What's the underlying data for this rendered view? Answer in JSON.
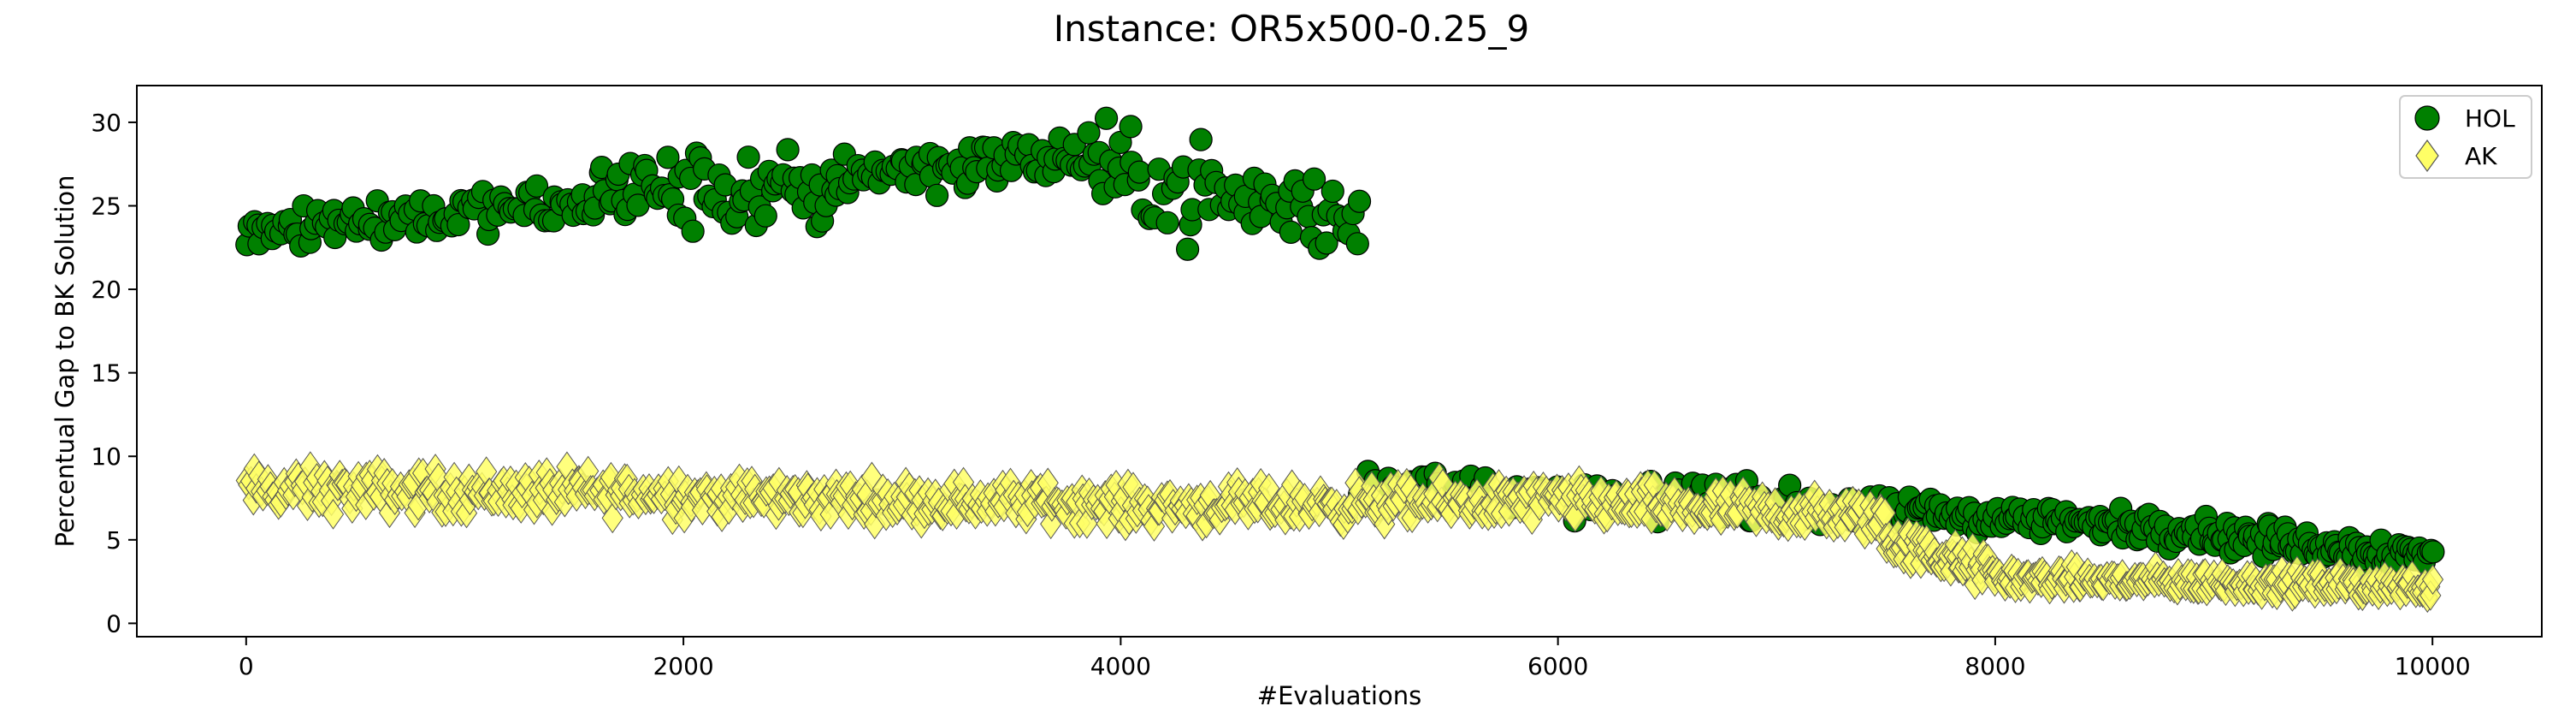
{
  "chart_data": {
    "type": "scatter",
    "title": "Instance: OR5x500-0.25_9",
    "xlabel": "#Evaluations",
    "ylabel": "Percentual Gap to BK Solution",
    "xlim": [
      -500,
      10500
    ],
    "ylim": [
      -0.8,
      32.2
    ],
    "xticks": [
      0,
      2000,
      4000,
      6000,
      8000,
      10000
    ],
    "yticks": [
      0,
      5,
      10,
      15,
      20,
      25,
      30
    ],
    "grid": false,
    "legend_position": "top-right",
    "series": [
      {
        "name": "HOL",
        "marker": "circle",
        "color": "#008000",
        "edge": "#000000",
        "segments": [
          {
            "x0": 0,
            "x1": 700,
            "n": 45,
            "lo": 21.8,
            "hi": 26.2,
            "trend": [
              23.8,
              24.3
            ],
            "spread": 1.4
          },
          {
            "x0": 700,
            "x1": 1600,
            "n": 55,
            "lo": 23.0,
            "hi": 27.8,
            "trend": [
              24.4,
              25.0
            ],
            "spread": 1.1
          },
          {
            "x0": 1600,
            "x1": 2700,
            "n": 75,
            "lo": 23.2,
            "hi": 30.5,
            "trend": [
              26.0,
              25.6
            ],
            "spread": 2.1
          },
          {
            "x0": 2700,
            "x1": 3900,
            "n": 75,
            "lo": 25.0,
            "hi": 30.4,
            "trend": [
              27.0,
              28.0
            ],
            "spread": 1.3
          },
          {
            "x0": 3900,
            "x1": 5100,
            "n": 70,
            "lo": 20.5,
            "hi": 30.6,
            "trend": [
              27.0,
              24.0
            ],
            "spread": 2.4
          },
          {
            "x0": 5100,
            "x1": 6500,
            "n": 85,
            "lo": 5.5,
            "hi": 10.3,
            "trend": [
              8.4,
              7.0
            ],
            "spread": 1.0
          },
          {
            "x0": 6500,
            "x1": 7600,
            "n": 80,
            "lo": 4.5,
            "hi": 9.0,
            "trend": [
              7.8,
              6.3
            ],
            "spread": 0.9
          },
          {
            "x0": 7600,
            "x1": 9000,
            "n": 110,
            "lo": 4.2,
            "hi": 8.5,
            "trend": [
              6.7,
              5.5
            ],
            "spread": 0.8
          },
          {
            "x0": 9000,
            "x1": 10000,
            "n": 90,
            "lo": 3.0,
            "hi": 7.3,
            "trend": [
              5.3,
              4.0
            ],
            "spread": 0.8
          }
        ]
      },
      {
        "name": "AK",
        "marker": "diamond",
        "color": "#ffff66",
        "edge": "#555555",
        "segments": [
          {
            "x0": 0,
            "x1": 2000,
            "n": 200,
            "lo": 5.5,
            "hi": 10.5,
            "trend": [
              8.0,
              7.8
            ],
            "spread": 1.1
          },
          {
            "x0": 2000,
            "x1": 4000,
            "n": 200,
            "lo": 5.0,
            "hi": 10.5,
            "trend": [
              7.6,
              7.2
            ],
            "spread": 1.0
          },
          {
            "x0": 4000,
            "x1": 6000,
            "n": 200,
            "lo": 4.5,
            "hi": 10.2,
            "trend": [
              7.0,
              7.3
            ],
            "spread": 1.0
          },
          {
            "x0": 6000,
            "x1": 7500,
            "n": 160,
            "lo": 4.0,
            "hi": 9.7,
            "trend": [
              7.3,
              6.3
            ],
            "spread": 1.0
          },
          {
            "x0": 7500,
            "x1": 8000,
            "n": 70,
            "lo": 1.5,
            "hi": 6.0,
            "trend": [
              5.0,
              3.0
            ],
            "spread": 0.9
          },
          {
            "x0": 8000,
            "x1": 10000,
            "n": 230,
            "lo": 0.8,
            "hi": 4.5,
            "trend": [
              2.7,
              2.2
            ],
            "spread": 0.6
          }
        ]
      }
    ]
  }
}
